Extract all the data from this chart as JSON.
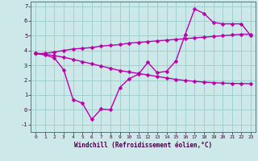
{
  "title": "",
  "xlabel": "Windchill (Refroidissement éolien,°C)",
  "ylabel": "",
  "bg_color": "#cce8e8",
  "line_color": "#bb00aa",
  "grid_color": "#99cccc",
  "xlim": [
    -0.5,
    23.5
  ],
  "ylim": [
    -1.5,
    7.3
  ],
  "yticks": [
    -1,
    0,
    1,
    2,
    3,
    4,
    5,
    6,
    7
  ],
  "xticks": [
    0,
    1,
    2,
    3,
    4,
    5,
    6,
    7,
    8,
    9,
    10,
    11,
    12,
    13,
    14,
    15,
    16,
    17,
    18,
    19,
    20,
    21,
    22,
    23
  ],
  "line1_x": [
    0,
    1,
    2,
    3,
    4,
    5,
    6,
    7,
    8,
    9,
    10,
    11,
    12,
    13,
    14,
    15,
    16,
    17,
    18,
    19,
    20,
    21,
    22,
    23
  ],
  "line1_y": [
    3.8,
    3.8,
    3.9,
    4.0,
    4.1,
    4.15,
    4.2,
    4.3,
    4.35,
    4.4,
    4.5,
    4.55,
    4.6,
    4.65,
    4.7,
    4.75,
    4.8,
    4.85,
    4.9,
    4.95,
    5.0,
    5.05,
    5.1,
    5.1
  ],
  "line2_x": [
    0,
    1,
    2,
    3,
    4,
    5,
    6,
    7,
    8,
    9,
    10,
    11,
    12,
    13,
    14,
    15,
    16,
    17,
    18,
    19,
    20,
    21,
    22,
    23
  ],
  "line2_y": [
    3.8,
    3.75,
    3.65,
    3.55,
    3.4,
    3.25,
    3.1,
    2.95,
    2.8,
    2.65,
    2.55,
    2.45,
    2.35,
    2.25,
    2.15,
    2.05,
    1.98,
    1.92,
    1.87,
    1.83,
    1.8,
    1.78,
    1.77,
    1.76
  ],
  "line3_x": [
    0,
    1,
    2,
    3,
    4,
    5,
    6,
    7,
    8,
    9,
    10,
    11,
    12,
    13,
    14,
    15,
    16,
    17,
    18,
    19,
    20,
    21,
    22,
    23
  ],
  "line3_y": [
    3.8,
    3.7,
    3.5,
    2.7,
    0.7,
    0.45,
    -0.65,
    0.05,
    0.0,
    1.5,
    2.1,
    2.4,
    3.2,
    2.5,
    2.6,
    3.3,
    5.1,
    6.8,
    6.5,
    5.9,
    5.8,
    5.8,
    5.8,
    5.0
  ],
  "marker": "D",
  "marker_size": 2.5,
  "line_width": 1.0
}
